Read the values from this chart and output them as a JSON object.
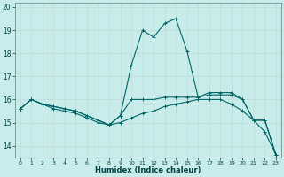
{
  "xlabel": "Humidex (Indice chaleur)",
  "background_color": "#c8ece9",
  "grid_color": "#d4eeea",
  "line_color": "#006666",
  "xlim": [
    -0.5,
    23.5
  ],
  "ylim": [
    13.5,
    20.2
  ],
  "yticks": [
    14,
    15,
    16,
    17,
    18,
    19,
    20
  ],
  "xticks": [
    0,
    1,
    2,
    3,
    4,
    5,
    6,
    7,
    8,
    9,
    10,
    11,
    12,
    13,
    14,
    15,
    16,
    17,
    18,
    19,
    20,
    21,
    22,
    23
  ],
  "series1_x": [
    0,
    1,
    2,
    3,
    4,
    5,
    6,
    7,
    8,
    9,
    10,
    11,
    12,
    13,
    14,
    15,
    16,
    17,
    18,
    19,
    20,
    21,
    22,
    23
  ],
  "series1_y": [
    15.6,
    16.0,
    15.8,
    15.7,
    15.6,
    15.5,
    15.3,
    15.1,
    14.9,
    15.3,
    17.5,
    19.0,
    18.7,
    19.3,
    19.5,
    18.1,
    16.1,
    16.3,
    16.3,
    16.3,
    16.0,
    15.1,
    15.1,
    13.6
  ],
  "series2_x": [
    0,
    1,
    2,
    3,
    4,
    5,
    6,
    7,
    8,
    9,
    10,
    11,
    12,
    13,
    14,
    15,
    16,
    17,
    18,
    19,
    20,
    21,
    22,
    23
  ],
  "series2_y": [
    15.6,
    16.0,
    15.8,
    15.7,
    15.6,
    15.5,
    15.3,
    15.1,
    14.9,
    15.3,
    16.0,
    16.0,
    16.0,
    16.1,
    16.1,
    16.1,
    16.1,
    16.2,
    16.2,
    16.2,
    16.0,
    15.1,
    15.1,
    13.6
  ],
  "series3_x": [
    0,
    1,
    2,
    3,
    4,
    5,
    6,
    7,
    8,
    9,
    10,
    11,
    12,
    13,
    14,
    15,
    16,
    17,
    18,
    19,
    20,
    21,
    22,
    23
  ],
  "series3_y": [
    15.6,
    16.0,
    15.8,
    15.6,
    15.5,
    15.4,
    15.2,
    15.0,
    14.9,
    15.0,
    15.2,
    15.4,
    15.5,
    15.7,
    15.8,
    15.9,
    16.0,
    16.0,
    16.0,
    15.8,
    15.5,
    15.1,
    14.6,
    13.6
  ]
}
